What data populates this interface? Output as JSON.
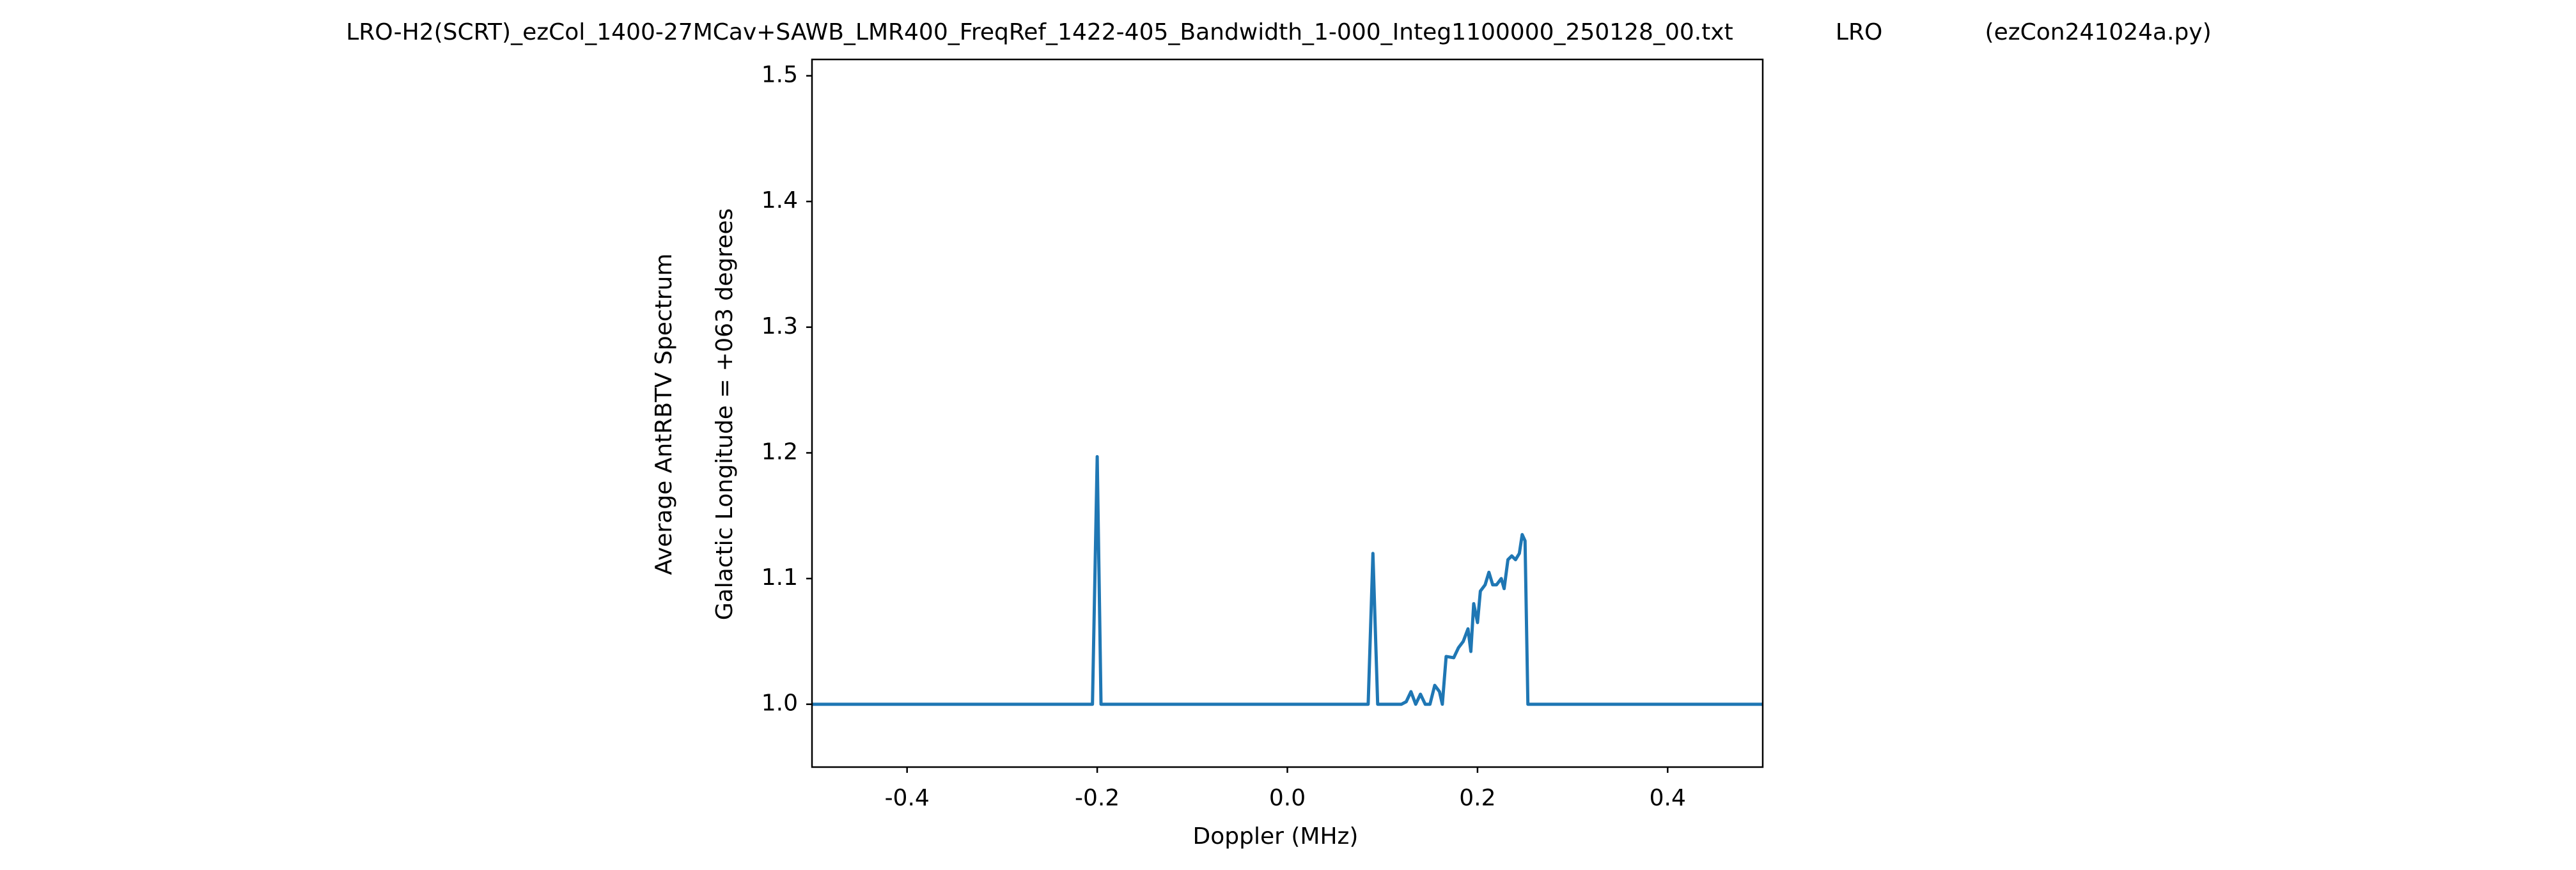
{
  "chart_data": {
    "type": "line",
    "title": "LRO-H2(SCRT)_ezCol_1400-27MCav+SAWB_LMR400_FreqRef_1422-405_Bandwidth_1-000_Integ1100000_250128_00.txt              LRO              (ezCon241024a.py)",
    "xlabel": "Doppler (MHz)",
    "ylabel": [
      "Average AntRBTV Spectrum",
      "Galactic Longitude = +063 degrees"
    ],
    "xlim": [
      -0.5,
      0.5
    ],
    "xticks": [
      -0.4,
      -0.2,
      {
        "value": 0,
        "label": "0.0"
      },
      0.2,
      0.4
    ],
    "ylim": [
      0.95,
      1.513
    ],
    "yticks": [
      {
        "value": 1,
        "label": "1.0"
      },
      1.1,
      1.2,
      1.3,
      1.4,
      1.5
    ],
    "grid": false,
    "series": [
      {
        "color": "#1f77b4",
        "x": [
          -0.5,
          -0.205,
          -0.2,
          -0.196,
          0.085,
          0.09,
          0.095,
          0.12,
          0.125,
          0.13,
          0.135,
          0.14,
          0.145,
          0.15,
          0.155,
          0.16,
          0.163,
          0.167,
          0.175,
          0.18,
          0.185,
          0.19,
          0.193,
          0.196,
          0.2,
          0.203,
          0.208,
          0.212,
          0.216,
          0.22,
          0.225,
          0.228,
          0.232,
          0.236,
          0.24,
          0.244,
          0.247,
          0.25,
          0.253,
          0.5
        ],
        "values": [
          1.0,
          1.0,
          1.197,
          1.0,
          1.0,
          1.12,
          1.0,
          1.0,
          1.002,
          1.01,
          1.0,
          1.008,
          1.0,
          1.0,
          1.015,
          1.01,
          1.0,
          1.038,
          1.037,
          1.045,
          1.05,
          1.06,
          1.042,
          1.08,
          1.065,
          1.09,
          1.095,
          1.105,
          1.095,
          1.095,
          1.1,
          1.092,
          1.115,
          1.118,
          1.115,
          1.12,
          1.135,
          1.13,
          1.0,
          1.0
        ]
      }
    ]
  }
}
